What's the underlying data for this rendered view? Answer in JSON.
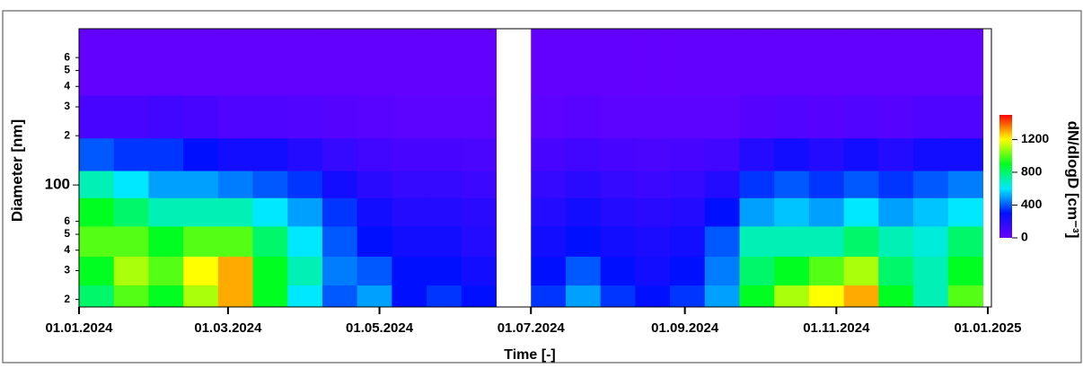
{
  "chart_data": {
    "type": "heatmap",
    "x_label": "Time [-]",
    "y_label": "Diameter [nm]",
    "colorbar_label": "dN/dlogD [cm⁻³]",
    "x": [
      "2024-01-01",
      "2024-01-15",
      "2024-01-29",
      "2024-02-12",
      "2024-02-26",
      "2024-03-11",
      "2024-03-25",
      "2024-04-08",
      "2024-04-22",
      "2024-05-06",
      "2024-05-20",
      "2024-06-03",
      "2024-06-17",
      "2024-07-01",
      "2024-07-15",
      "2024-07-29",
      "2024-08-12",
      "2024-08-26",
      "2024-09-09",
      "2024-09-23",
      "2024-10-07",
      "2024-10-21",
      "2024-11-04",
      "2024-11-18",
      "2024-12-02",
      "2024-12-16"
    ],
    "y": [
      20,
      30,
      45,
      70,
      100,
      150,
      250,
      500
    ],
    "values": [
      [
        800,
        900,
        1000,
        900,
        700,
        400,
        100,
        20
      ],
      [
        1000,
        1100,
        1000,
        800,
        600,
        350,
        100,
        20
      ],
      [
        900,
        1000,
        900,
        700,
        500,
        350,
        120,
        20
      ],
      [
        1100,
        1200,
        1000,
        700,
        500,
        300,
        100,
        20
      ],
      [
        1300,
        1300,
        1000,
        700,
        450,
        250,
        80,
        20
      ],
      [
        900,
        900,
        800,
        600,
        400,
        250,
        80,
        20
      ],
      [
        600,
        700,
        600,
        500,
        350,
        200,
        70,
        20
      ],
      [
        400,
        450,
        400,
        350,
        250,
        150,
        60,
        20
      ],
      [
        500,
        400,
        300,
        250,
        180,
        120,
        50,
        20
      ],
      [
        300,
        300,
        250,
        200,
        150,
        100,
        40,
        20
      ],
      [
        350,
        300,
        250,
        200,
        150,
        100,
        40,
        20
      ],
      [
        300,
        250,
        200,
        180,
        130,
        90,
        40,
        20
      ],
      [
        null,
        null,
        null,
        null,
        null,
        null,
        null,
        null
      ],
      [
        350,
        300,
        250,
        200,
        150,
        100,
        40,
        20
      ],
      [
        500,
        400,
        300,
        250,
        180,
        120,
        50,
        20
      ],
      [
        350,
        300,
        250,
        200,
        150,
        100,
        40,
        20
      ],
      [
        300,
        250,
        220,
        180,
        130,
        90,
        40,
        20
      ],
      [
        350,
        300,
        250,
        200,
        150,
        100,
        40,
        20
      ],
      [
        500,
        450,
        400,
        300,
        200,
        120,
        40,
        20
      ],
      [
        900,
        800,
        700,
        500,
        350,
        200,
        60,
        20
      ],
      [
        1100,
        900,
        700,
        550,
        400,
        250,
        70,
        20
      ],
      [
        1200,
        1000,
        700,
        500,
        350,
        200,
        60,
        20
      ],
      [
        1300,
        1100,
        800,
        600,
        400,
        250,
        70,
        20
      ],
      [
        900,
        800,
        700,
        500,
        350,
        200,
        60,
        20
      ],
      [
        700,
        700,
        650,
        550,
        400,
        250,
        80,
        20
      ],
      [
        1000,
        900,
        800,
        600,
        450,
        250,
        80,
        20
      ]
    ],
    "xlim": [
      "2024-01-01",
      "2025-01-01"
    ],
    "xticks": [
      {
        "value": "2024-01-01",
        "label": "01.01.2024"
      },
      {
        "value": "2024-03-01",
        "label": "01.03.2024"
      },
      {
        "value": "2024-05-01",
        "label": "01.05.2024"
      },
      {
        "value": "2024-07-01",
        "label": "01.07.2024"
      },
      {
        "value": "2024-09-01",
        "label": "01.09.2024"
      },
      {
        "value": "2024-11-01",
        "label": "01.11.2024"
      },
      {
        "value": "2025-01-01",
        "label": "01.01.2025"
      }
    ],
    "ylim": [
      18,
      900
    ],
    "y_log": true,
    "yticks": [
      {
        "value": 20,
        "label": "2"
      },
      {
        "value": 30,
        "label": "3"
      },
      {
        "value": 40,
        "label": "4"
      },
      {
        "value": 50,
        "label": "5"
      },
      {
        "value": 60,
        "label": "6"
      },
      100,
      {
        "value": 200,
        "label": "2"
      },
      {
        "value": 300,
        "label": "3"
      },
      {
        "value": 400,
        "label": "4"
      },
      {
        "value": 500,
        "label": "5"
      },
      {
        "value": 600,
        "label": "6"
      }
    ],
    "clim": [
      0,
      1500
    ],
    "cticks": [
      0,
      400,
      800,
      1200
    ],
    "colorscale": [
      "#6a00ff",
      "#0010ff",
      "#00e8ff",
      "#00ff20",
      "#ffff00",
      "#ff0000"
    ]
  }
}
